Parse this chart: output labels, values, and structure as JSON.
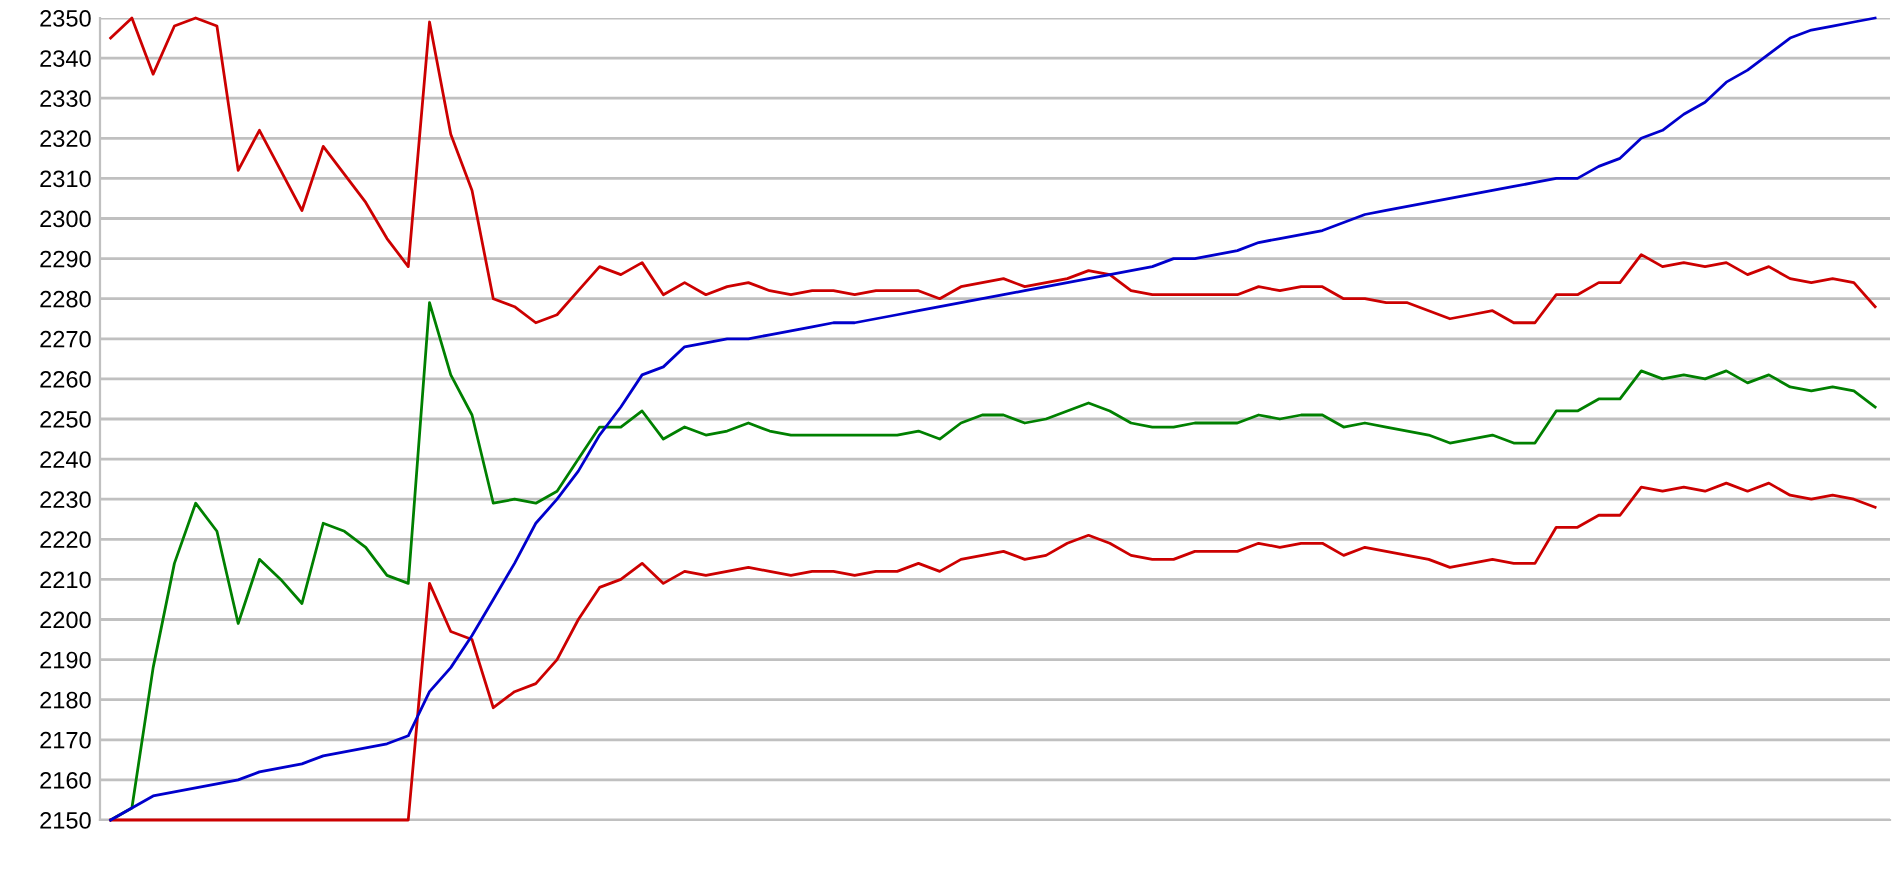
{
  "chart_data": {
    "type": "line",
    "categories": [
      null,
      null,
      null,
      null,
      null,
      null,
      null,
      null,
      null,
      null,
      null,
      null,
      null,
      null,
      null,
      null,
      null,
      null,
      null,
      null,
      null,
      null,
      null,
      null,
      null,
      null,
      null,
      null,
      null,
      null,
      null,
      null,
      null,
      null,
      null,
      null,
      null,
      null,
      null,
      null,
      null,
      null,
      null,
      null,
      null,
      null,
      null,
      null,
      null,
      null,
      null,
      null,
      null,
      null,
      null,
      null,
      null,
      null,
      null,
      null,
      null,
      null,
      null,
      null,
      null,
      null,
      null,
      null,
      null,
      null,
      null,
      null,
      null,
      null,
      null,
      null,
      null,
      null,
      null,
      null,
      null,
      null,
      null,
      null
    ],
    "series": [
      {
        "color": "#cc0000",
        "values": [
          2345,
          2350,
          2336,
          2348,
          2350,
          2348,
          2312,
          2322,
          2312,
          2302,
          2318,
          2311,
          2304,
          2295,
          2288,
          2349,
          2321,
          2307,
          2280,
          2278,
          2274,
          2276,
          2282,
          2288,
          2286,
          2289,
          2281,
          2284,
          2281,
          2283,
          2284,
          2282,
          2281,
          2282,
          2282,
          2281,
          2282,
          2282,
          2282,
          2280,
          2283,
          2284,
          2285,
          2283,
          2284,
          2285,
          2287,
          2286,
          2282,
          2281,
          2281,
          2281,
          2281,
          2281,
          2283,
          2282,
          2283,
          2283,
          2280,
          2280,
          2279,
          2279,
          2277,
          2275,
          2276,
          2277,
          2274,
          2274,
          2281,
          2281,
          2284,
          2284,
          2291,
          2288,
          2289,
          2288,
          2289,
          2286,
          2288,
          2285,
          2284,
          2285,
          2284,
          2278
        ]
      },
      {
        "color": "#008000",
        "values": [
          2150,
          2153,
          2188,
          2214,
          2229,
          2222,
          2199,
          2215,
          2210,
          2204,
          2224,
          2222,
          2218,
          2211,
          2209,
          2279,
          2261,
          2251,
          2229,
          2230,
          2229,
          2232,
          2240,
          2248,
          2248,
          2252,
          2245,
          2248,
          2246,
          2247,
          2249,
          2247,
          2246,
          2246,
          2246,
          2246,
          2246,
          2246,
          2247,
          2245,
          2249,
          2251,
          2251,
          2249,
          2250,
          2252,
          2254,
          2252,
          2249,
          2248,
          2248,
          2249,
          2249,
          2249,
          2251,
          2250,
          2251,
          2251,
          2248,
          2249,
          2248,
          2247,
          2246,
          2244,
          2245,
          2246,
          2244,
          2244,
          2252,
          2252,
          2255,
          2255,
          2262,
          2260,
          2261,
          2260,
          2262,
          2259,
          2261,
          2258,
          2257,
          2258,
          2257,
          2253
        ]
      },
      {
        "color": "#cc0000",
        "values": [
          2150,
          2150,
          2150,
          2150,
          2150,
          2150,
          2150,
          2150,
          2150,
          2150,
          2150,
          2150,
          2150,
          2150,
          2150,
          2209,
          2197,
          2195,
          2178,
          2182,
          2184,
          2190,
          2200,
          2208,
          2210,
          2214,
          2209,
          2212,
          2211,
          2212,
          2213,
          2212,
          2211,
          2212,
          2212,
          2211,
          2212,
          2212,
          2214,
          2212,
          2215,
          2216,
          2217,
          2215,
          2216,
          2219,
          2221,
          2219,
          2216,
          2215,
          2215,
          2217,
          2217,
          2217,
          2219,
          2218,
          2219,
          2219,
          2216,
          2218,
          2217,
          2216,
          2215,
          2213,
          2214,
          2215,
          2214,
          2214,
          2223,
          2223,
          2226,
          2226,
          2233,
          2232,
          2233,
          2232,
          2234,
          2232,
          2234,
          2231,
          2230,
          2231,
          2230,
          2228
        ]
      },
      {
        "color": "#0000cc",
        "values": [
          2150,
          2153,
          2156,
          2157,
          2158,
          2159,
          2160,
          2162,
          2163,
          2164,
          2166,
          2167,
          2168,
          2169,
          2171,
          2182,
          2188,
          2196,
          2205,
          2214,
          2224,
          2230,
          2237,
          2246,
          2253,
          2261,
          2263,
          2268,
          2269,
          2270,
          2270,
          2271,
          2272,
          2273,
          2274,
          2274,
          2275,
          2276,
          2277,
          2278,
          2279,
          2280,
          2281,
          2282,
          2283,
          2284,
          2285,
          2286,
          2287,
          2288,
          2290,
          2290,
          2291,
          2292,
          2294,
          2295,
          2296,
          2297,
          2299,
          2301,
          2302,
          2303,
          2304,
          2305,
          2306,
          2307,
          2308,
          2309,
          2310,
          2310,
          2313,
          2315,
          2320,
          2322,
          2326,
          2329,
          2334,
          2337,
          2341,
          2345,
          2347,
          2348,
          2349,
          2350
        ]
      }
    ],
    "ylim": [
      2150,
      2350
    ],
    "yticks": [
      2150,
      2160,
      2170,
      2180,
      2190,
      2200,
      2210,
      2220,
      2230,
      2240,
      2250,
      2260,
      2270,
      2280,
      2290,
      2300,
      2310,
      2320,
      2330,
      2340,
      2350
    ],
    "grid": "y",
    "marker": "none",
    "line_style": "solid"
  }
}
